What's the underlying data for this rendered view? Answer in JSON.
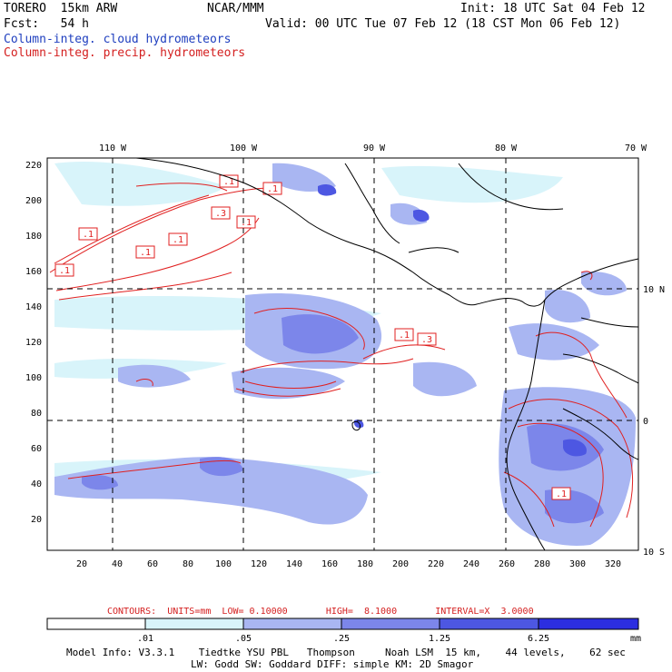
{
  "header": {
    "model": "TORERO  15km ARW",
    "org": "NCAR/MMM",
    "init": "Init: 18 UTC Sat 04 Feb 12",
    "fcst": "Fcst:   54 h",
    "valid": "Valid: 00 UTC Tue 07 Feb 12 (18 CST Mon 06 Feb 12)",
    "field1": "Column-integ. cloud hydrometeors",
    "field2": "Column-integ. precip. hydrometeors"
  },
  "colors": {
    "c1": "#d8f4fa",
    "c2": "#a9b6f2",
    "c3": "#7c86ea",
    "c4": "#4d57e2",
    "c5": "#2c2ee0",
    "contour": "#e02020",
    "coast": "#000000"
  },
  "axes": {
    "top_lon_labels": [
      "110 W",
      "100 W",
      "90 W",
      "80 W",
      "70 W"
    ],
    "right_lat_labels": [
      "10 N",
      "0",
      "10 S"
    ],
    "left_ticks": [
      "220",
      "200",
      "180",
      "160",
      "140",
      "120",
      "100",
      "80",
      "60",
      "40",
      "20"
    ],
    "bottom_ticks": [
      "20",
      "40",
      "60",
      "80",
      "100",
      "120",
      "140",
      "160",
      "180",
      "200",
      "220",
      "240",
      "260",
      "280",
      "300",
      "320"
    ]
  },
  "contour_labels": [
    ".1",
    ".1",
    ".3",
    ".1",
    ".1",
    ".1",
    ".1",
    ".1",
    ".1",
    ".3",
    ".1"
  ],
  "contour_info": "CONTOURS:  UNITS=mm  LOW= 0.10000       HIGH=  8.1000       INTERVAL=X  3.0000",
  "colorbar": {
    "labels": [
      ".01",
      ".05",
      ".25",
      "1.25",
      "6.25"
    ],
    "unit": "mm"
  },
  "model_info": {
    "line1": "Model Info: V3.3.1    Tiedtke YSU PBL   Thompson     Noah LSM  15 km,    44 levels,    62 sec",
    "line2": "LW: Godd SW: Goddard DIFF: simple KM: 2D Smagor"
  }
}
